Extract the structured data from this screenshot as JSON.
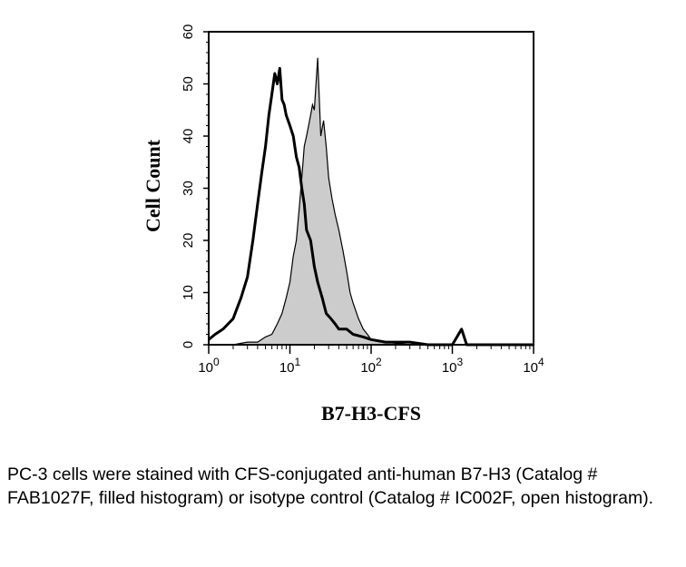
{
  "chart_data": {
    "type": "area",
    "title": "",
    "xlabel": "B7-H3-CFS",
    "ylabel": "Cell Count",
    "xscale": "log",
    "xlim": [
      1,
      10000
    ],
    "ylim": [
      0,
      60
    ],
    "x_tick_labels": [
      {
        "base": "10",
        "exp": "0"
      },
      {
        "base": "10",
        "exp": "1"
      },
      {
        "base": "10",
        "exp": "2"
      },
      {
        "base": "10",
        "exp": "3"
      },
      {
        "base": "10",
        "exp": "4"
      }
    ],
    "y_ticks": [
      0,
      10,
      20,
      30,
      40,
      50,
      60
    ],
    "series": [
      {
        "style": "filled",
        "fill": "#cccccc",
        "stroke": "#000000",
        "x": [
          1,
          2,
          3,
          4,
          5,
          6,
          7,
          8,
          9,
          10,
          11,
          12,
          13,
          14,
          15,
          16,
          17,
          18,
          19,
          20,
          22,
          24,
          26,
          28,
          30,
          33,
          36,
          40,
          45,
          50,
          55,
          60,
          70,
          80,
          90,
          100,
          150,
          300,
          1000,
          10000
        ],
        "values": [
          0,
          0,
          0.5,
          0.5,
          1.5,
          2,
          4,
          6,
          9,
          12,
          17,
          20,
          26,
          32,
          38,
          40,
          42,
          44,
          46,
          45,
          55,
          40,
          43,
          38,
          32,
          28,
          25,
          22,
          18,
          14,
          10,
          8,
          5,
          3,
          2,
          1,
          0.5,
          0,
          0,
          0
        ]
      },
      {
        "style": "open",
        "stroke": "#000000",
        "x": [
          1,
          1.2,
          1.5,
          2,
          2.5,
          3,
          3.5,
          4,
          4.5,
          5,
          5.5,
          6,
          6.5,
          7,
          7.5,
          8,
          8.5,
          9,
          10,
          11,
          12,
          13,
          14,
          15,
          16,
          18,
          20,
          22,
          25,
          28,
          32,
          36,
          40,
          50,
          60,
          80,
          100,
          150,
          200,
          300,
          500,
          1000,
          1300,
          1500,
          2000,
          5000,
          10000
        ],
        "values": [
          1,
          2,
          3,
          5,
          9,
          13,
          20,
          27,
          33,
          38,
          44,
          48,
          52,
          50,
          53,
          47,
          46,
          44,
          42,
          40,
          36,
          34,
          30,
          27,
          22,
          20,
          15,
          12,
          9,
          6,
          5,
          4,
          3,
          3,
          2,
          1.5,
          1,
          0.5,
          0.5,
          0.5,
          0,
          0,
          3,
          0,
          0,
          0,
          0
        ]
      }
    ]
  },
  "caption": "PC-3 cells were stained with CFS-conjugated anti-human B7-H3 (Catalog # FAB1027F, filled histogram) or isotype control (Catalog # IC002F, open histogram)."
}
